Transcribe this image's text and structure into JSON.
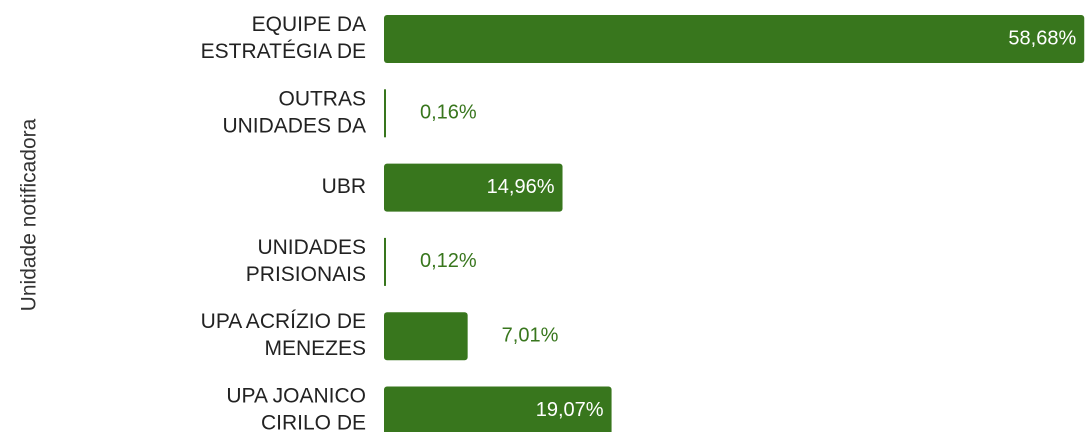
{
  "chart_data": {
    "type": "barh",
    "y_label": "Unidade notificadora",
    "categories": [
      [
        "EQUIPE DA",
        "ESTRATÉGIA DE"
      ],
      [
        "OUTRAS",
        "UNIDADES DA"
      ],
      [
        "UBR"
      ],
      [
        "UNIDADES",
        "PRISIONAIS"
      ],
      [
        "UPA ACRÍZIO DE",
        "MENEZES"
      ],
      [
        "UPA JOANICO",
        "CIRILO DE"
      ]
    ],
    "values": [
      58.68,
      0.16,
      14.96,
      0.12,
      7.01,
      19.07
    ],
    "value_labels": [
      "58,68%",
      "0,16%",
      "14,96%",
      "0,12%",
      "7,01%",
      "19,07%"
    ],
    "color": "#38761d",
    "xlim": [
      0,
      60
    ]
  }
}
